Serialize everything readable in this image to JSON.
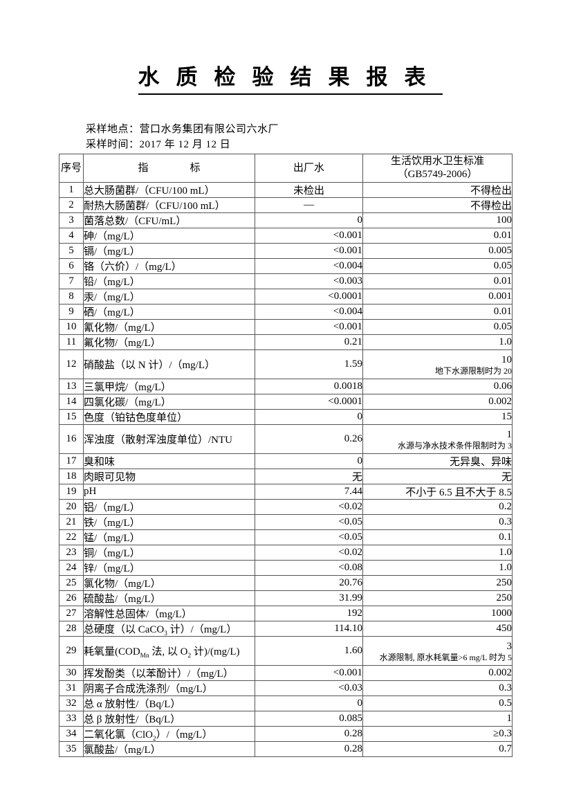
{
  "title": "水质检验结果报表",
  "meta": {
    "location": "采样地点：营口水务集团有限公司六水厂",
    "time": "采样时间：2017 年 12 月 12 日"
  },
  "table": {
    "header": {
      "no": "序号",
      "indicator": "指　　　　标",
      "factory": "出厂水",
      "standard_line1": "生活饮用水卫生标准",
      "standard_line2": "（GB5749-2006）"
    },
    "rows": [
      {
        "no": "1",
        "label": "总大肠菌群/（CFU/100 mL）",
        "value": "未检出",
        "center": true,
        "standard": "不得检出"
      },
      {
        "no": "2",
        "label": "耐热大肠菌群/（CFU/100 mL）",
        "value": "—",
        "center": true,
        "standard": "不得检出"
      },
      {
        "no": "3",
        "label": "菌落总数/（CFU/mL）",
        "value": "0",
        "standard": "100"
      },
      {
        "no": "4",
        "label": "砷/（mg/L）",
        "value": "<0.001",
        "standard": "0.01"
      },
      {
        "no": "5",
        "label": "镉/（mg/L）",
        "value": "<0.001",
        "standard": "0.005"
      },
      {
        "no": "6",
        "label": "铬（六价）/（mg/L）",
        "value": "<0.004",
        "standard": "0.05"
      },
      {
        "no": "7",
        "label": "铅/（mg/L）",
        "value": "<0.003",
        "standard": "0.01"
      },
      {
        "no": "8",
        "label": "汞/（mg/L）",
        "value": "<0.0001",
        "standard": "0.001"
      },
      {
        "no": "9",
        "label": "硒/（mg/L）",
        "value": "<0.004",
        "standard": "0.01"
      },
      {
        "no": "10",
        "label": "氰化物/（mg/L）",
        "value": "<0.001",
        "standard": "0.05"
      },
      {
        "no": "11",
        "label": "氟化物/（mg/L）",
        "value": "0.21",
        "standard": "1.0"
      },
      {
        "no": "12",
        "label": "硝酸盐（以 N 计）/（mg/L）",
        "value": "1.59",
        "standard": "10",
        "standard_note": "地下水源限制时为 20"
      },
      {
        "no": "13",
        "label": "三氯甲烷/（mg/L）",
        "value": "0.0018",
        "standard": "0.06"
      },
      {
        "no": "14",
        "label": "四氯化碳/（mg/L）",
        "value": "<0.0001",
        "standard": "0.002"
      },
      {
        "no": "15",
        "label": "色度（铂钴色度单位）",
        "value": "0",
        "standard": "15"
      },
      {
        "no": "16",
        "label": "浑浊度（散射浑浊度单位）/NTU",
        "value": "0.26",
        "standard": "1",
        "standard_note": "水源与净水技术条件限制时为 3"
      },
      {
        "no": "17",
        "label": "臭和味",
        "value": "0",
        "standard": "无异臭、异味"
      },
      {
        "no": "18",
        "label": "肉眼可见物",
        "value": "无",
        "standard": "无"
      },
      {
        "no": "19",
        "label": "pH",
        "value": "7.44",
        "standard": "不小于 6.5 且不大于 8.5"
      },
      {
        "no": "20",
        "label": "铝/（mg/L）",
        "value": "<0.02",
        "standard": "0.2"
      },
      {
        "no": "21",
        "label": "铁/（mg/L）",
        "value": "<0.05",
        "standard": "0.3"
      },
      {
        "no": "22",
        "label": "锰/（mg/L）",
        "value": "<0.05",
        "standard": "0.1"
      },
      {
        "no": "23",
        "label": "铜/（mg/L）",
        "value": "<0.02",
        "standard": "1.0"
      },
      {
        "no": "24",
        "label": "锌/（mg/L）",
        "value": "<0.08",
        "standard": "1.0"
      },
      {
        "no": "25",
        "label": "氯化物/（mg/L）",
        "value": "20.76",
        "standard": "250"
      },
      {
        "no": "26",
        "label": "硫酸盐/（mg/L）",
        "value": "31.99",
        "standard": "250"
      },
      {
        "no": "27",
        "label": "溶解性总固体/（mg/L）",
        "value": "192",
        "standard": "1000"
      },
      {
        "no": "28",
        "label": "总硬度（以 CaCO~3~ 计）/（mg/L）",
        "value": "114.10",
        "standard": "450"
      },
      {
        "no": "29",
        "label": "耗氧量(COD~Mn~ 法, 以 O~2~ 计)/(mg/L)",
        "value": "1.60",
        "standard": "3",
        "standard_note": "水源限制, 原水耗氧量>6 mg/L 时为 5"
      },
      {
        "no": "30",
        "label": "挥发酚类（以苯酚计）/（mg/L）",
        "value": "<0.001",
        "standard": "0.002"
      },
      {
        "no": "31",
        "label": "阴离子合成洗涤剂/（mg/L）",
        "value": "<0.03",
        "standard": "0.3"
      },
      {
        "no": "32",
        "label": "总 α 放射性/（Bq/L）",
        "value": "0",
        "standard": "0.5"
      },
      {
        "no": "33",
        "label": "总 β 放射性/（Bq/L）",
        "value": "0.085",
        "standard": "1"
      },
      {
        "no": "34",
        "label": "二氧化氯（ClO~2~）/（mg/L）",
        "value": "0.28",
        "standard": "≥0.3"
      },
      {
        "no": "35",
        "label": "氯酸盐/（mg/L）",
        "value": "0.28",
        "standard": "0.7"
      }
    ]
  }
}
